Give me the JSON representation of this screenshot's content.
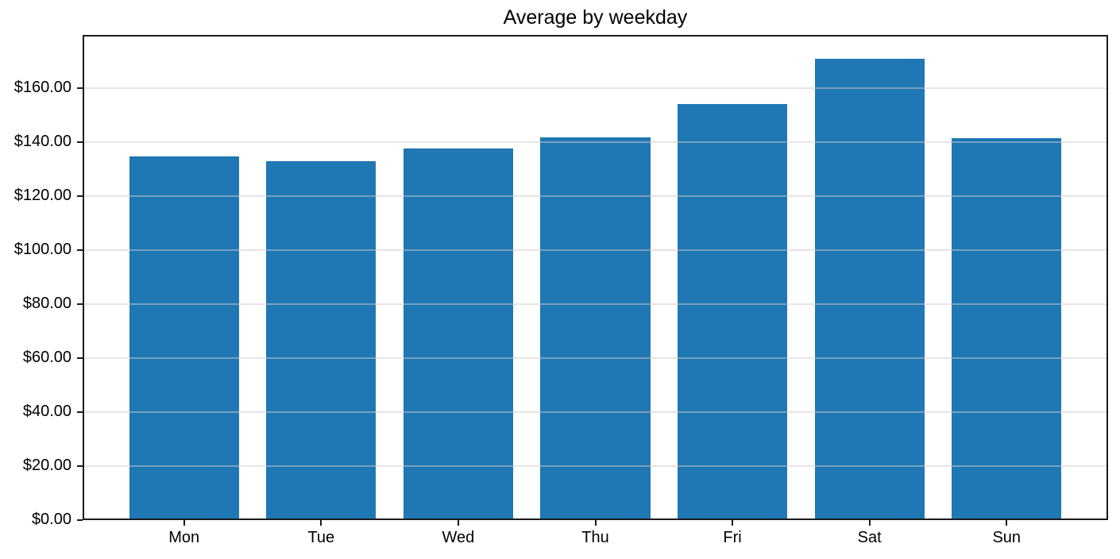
{
  "figure": {
    "background": "#ffffff"
  },
  "chart_data": {
    "type": "bar",
    "title": "Average by weekday",
    "categories": [
      "Mon",
      "Tue",
      "Wed",
      "Thu",
      "Fri",
      "Sat",
      "Sun"
    ],
    "values": [
      134.7,
      132.9,
      137.8,
      141.7,
      154.2,
      171.0,
      141.6
    ],
    "xlabel": "",
    "ylabel": "",
    "ylim": [
      0,
      179.8
    ],
    "yticks": [
      0,
      20,
      40,
      60,
      80,
      100,
      120,
      140,
      160
    ],
    "ytick_labels": [
      "$0.00",
      "$20.00",
      "$40.00",
      "$60.00",
      "$80.00",
      "$100.00",
      "$120.00",
      "$140.00",
      "$160.00"
    ],
    "grid": true,
    "grid_axis": "y",
    "legend_position": "none",
    "bar_color": "#1f77b4",
    "gridline_color": "#cccccc",
    "gridline_opacity": 0.5,
    "axis_color": "#1a1a1a",
    "text_color": "#000000",
    "bar_width_fraction": 0.8,
    "x_margin_fraction": 0.05
  }
}
